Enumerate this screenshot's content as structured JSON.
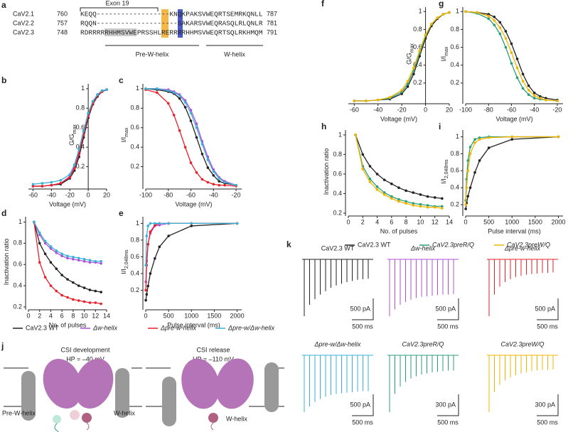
{
  "alignment": {
    "label": "a",
    "exon": "Exon 19",
    "rows": [
      {
        "channel": "CaV2.1",
        "start": 760,
        "sequence": "KEQQ------------------KNQKPAKSVWEQRTSEMRKQNLL",
        "end": 787
      },
      {
        "channel": "CaV2.2",
        "start": 757,
        "sequence": "RQQN--------------------SAKARSVWEQRASQLRLQNLR",
        "end": 781
      },
      {
        "channel": "CaV2.3",
        "start": 748,
        "sequence": "RDRRRRRHHMSVWEPRSSHLRERRRRHHMSVWEQRTSQLRKHMQM",
        "end": 791
      }
    ],
    "regions": [
      "Pre-W-helix",
      "W-helix"
    ]
  },
  "chart_data": [
    {
      "type": "line",
      "label": "b",
      "xlabel": "Voltage (mV)",
      "ylabel": "G/G",
      "ylabel_sub": "max",
      "y_axis_at": 0,
      "x": [
        -60,
        -50,
        -40,
        -30,
        -20,
        -15,
        -10,
        -5,
        0,
        5,
        10,
        15,
        20
      ],
      "xlim": [
        -65,
        20
      ],
      "xticks": [
        -60,
        -40,
        -20,
        0,
        20
      ],
      "ylim": [
        0,
        1.05
      ],
      "yticks": [
        0.2,
        0.4,
        0.6,
        0.8,
        1.0
      ],
      "series": [
        {
          "color": "#222222",
          "values": [
            0,
            0,
            0.01,
            0.02,
            0.08,
            0.16,
            0.3,
            0.5,
            0.7,
            0.84,
            0.92,
            0.97,
            0.99
          ]
        },
        {
          "color": "#b04fd8",
          "values": [
            0,
            0,
            0.01,
            0.03,
            0.1,
            0.2,
            0.36,
            0.56,
            0.74,
            0.87,
            0.94,
            0.98,
            0.99
          ]
        },
        {
          "color": "#e8202a",
          "values": [
            0,
            0,
            0.01,
            0.03,
            0.09,
            0.18,
            0.33,
            0.53,
            0.72,
            0.85,
            0.93,
            0.97,
            0.99
          ]
        },
        {
          "color": "#3ab0d8",
          "values": [
            0.02,
            0.03,
            0.04,
            0.06,
            0.12,
            0.22,
            0.38,
            0.57,
            0.75,
            0.87,
            0.94,
            0.98,
            0.99
          ]
        }
      ]
    },
    {
      "type": "line",
      "label": "c",
      "xlabel": "Voltage (mV)",
      "ylabel": "I/I",
      "ylabel_sub": "max",
      "x": [
        -100,
        -90,
        -80,
        -75,
        -70,
        -65,
        -60,
        -55,
        -50,
        -45,
        -40,
        -35,
        -30,
        -20
      ],
      "xlim": [
        -100,
        -15
      ],
      "xticks": [
        -100,
        -80,
        -60,
        -40,
        -20
      ],
      "ylim": [
        0,
        1.05
      ],
      "yticks": [
        0.2,
        0.4,
        0.6,
        0.8,
        1.0
      ],
      "series": [
        {
          "color": "#222222",
          "values": [
            1,
            0.99,
            0.97,
            0.95,
            0.9,
            0.81,
            0.67,
            0.5,
            0.33,
            0.19,
            0.11,
            0.05,
            0.03,
            0.01
          ]
        },
        {
          "color": "#b04fd8",
          "values": [
            1,
            1,
            0.99,
            0.97,
            0.94,
            0.88,
            0.78,
            0.64,
            0.46,
            0.3,
            0.17,
            0.09,
            0.05,
            0.01
          ]
        },
        {
          "color": "#e8202a",
          "values": [
            0.99,
            0.96,
            0.85,
            0.73,
            0.57,
            0.4,
            0.24,
            0.14,
            0.07,
            0.04,
            0.02,
            0.01,
            0.01,
            0
          ]
        },
        {
          "color": "#3ab0d8",
          "values": [
            1,
            1,
            0.98,
            0.96,
            0.93,
            0.86,
            0.75,
            0.6,
            0.43,
            0.27,
            0.15,
            0.08,
            0.04,
            0.01
          ]
        }
      ]
    },
    {
      "type": "line",
      "label": "d",
      "xlabel": "No. of pulses",
      "ylabel": "Inactivation ratio",
      "x": [
        1,
        2,
        3,
        4,
        5,
        6,
        7,
        8,
        9,
        10,
        11,
        12,
        13
      ],
      "xlim": [
        0,
        14
      ],
      "xticks": [
        0,
        2,
        4,
        6,
        8,
        10,
        12,
        14
      ],
      "ylim": [
        0.2,
        1.05
      ],
      "yticks": [
        0.2,
        0.4,
        0.6,
        0.8,
        1.0
      ],
      "series": [
        {
          "color": "#222222",
          "values": [
            1,
            0.8,
            0.7,
            0.62,
            0.56,
            0.5,
            0.46,
            0.43,
            0.4,
            0.38,
            0.36,
            0.35,
            0.34
          ]
        },
        {
          "color": "#b04fd8",
          "values": [
            1,
            0.88,
            0.8,
            0.75,
            0.71,
            0.68,
            0.66,
            0.65,
            0.64,
            0.63,
            0.62,
            0.62,
            0.61
          ]
        },
        {
          "color": "#e8202a",
          "values": [
            1,
            0.62,
            0.48,
            0.4,
            0.35,
            0.31,
            0.29,
            0.27,
            0.26,
            0.25,
            0.24,
            0.24,
            0.23
          ]
        },
        {
          "color": "#3ab0d8",
          "values": [
            1,
            0.9,
            0.82,
            0.77,
            0.73,
            0.7,
            0.68,
            0.67,
            0.66,
            0.65,
            0.64,
            0.63,
            0.63
          ]
        }
      ]
    },
    {
      "type": "line",
      "label": "e",
      "xlabel": "Pulse interval (ms)",
      "ylabel": "I/I",
      "ylabel_sub": "2,048ms",
      "x": [
        2,
        20,
        50,
        100,
        200,
        300,
        500,
        1000,
        2000
      ],
      "xlim": [
        0,
        2100
      ],
      "xticks": [
        0,
        500,
        1000,
        1500,
        2000
      ],
      "ylim": [
        0,
        1.08
      ],
      "yticks": [
        0.2,
        0.4,
        0.6,
        0.8,
        1.0
      ],
      "series": [
        {
          "color": "#222222",
          "values": [
            0.08,
            0.15,
            0.25,
            0.4,
            0.58,
            0.72,
            0.85,
            0.97,
            1.0
          ]
        },
        {
          "color": "#b04fd8",
          "values": [
            0.3,
            0.55,
            0.75,
            0.88,
            0.97,
            0.98,
            1,
            1,
            1
          ]
        },
        {
          "color": "#e8202a",
          "values": [
            0.2,
            0.5,
            0.75,
            0.9,
            0.98,
            1,
            1,
            1,
            1
          ]
        },
        {
          "color": "#3ab0d8",
          "values": [
            0.5,
            0.85,
            0.97,
            1,
            1,
            1,
            1,
            1,
            1
          ]
        }
      ]
    },
    {
      "type": "line",
      "label": "f",
      "xlabel": "Voltage (mV)",
      "ylabel": "G/G",
      "ylabel_sub": "max",
      "y_axis_at": 0,
      "x": [
        -60,
        -50,
        -40,
        -30,
        -20,
        -15,
        -10,
        -5,
        0,
        5,
        10,
        15,
        20
      ],
      "xlim": [
        -65,
        20
      ],
      "xticks": [
        -60,
        -40,
        -20,
        0,
        20
      ],
      "ylim": [
        0,
        1.05
      ],
      "yticks": [
        0.2,
        0.4,
        0.6,
        0.8,
        1.0
      ],
      "series": [
        {
          "color": "#222222",
          "values": [
            0,
            0,
            0.01,
            0.02,
            0.08,
            0.16,
            0.3,
            0.5,
            0.7,
            0.84,
            0.92,
            0.97,
            0.99
          ]
        },
        {
          "color": "#2a9d78",
          "values": [
            0,
            0,
            0.01,
            0.03,
            0.1,
            0.19,
            0.34,
            0.54,
            0.73,
            0.86,
            0.93,
            0.97,
            0.99
          ]
        },
        {
          "color": "#f0b400",
          "values": [
            0,
            0,
            0.01,
            0.04,
            0.12,
            0.22,
            0.37,
            0.56,
            0.74,
            0.86,
            0.93,
            0.97,
            0.99
          ]
        }
      ]
    },
    {
      "type": "line",
      "label": "g",
      "xlabel": "Voltage (mV)",
      "ylabel": "I/I",
      "ylabel_sub": "max",
      "x": [
        -100,
        -90,
        -80,
        -75,
        -70,
        -65,
        -60,
        -55,
        -50,
        -45,
        -40,
        -35,
        -30,
        -20
      ],
      "xlim": [
        -100,
        -15
      ],
      "xticks": [
        -100,
        -80,
        -60,
        -40,
        -20
      ],
      "ylim": [
        0,
        1.05
      ],
      "yticks": [
        0.2,
        0.4,
        0.6,
        0.8,
        1.0
      ],
      "series": [
        {
          "color": "#222222",
          "values": [
            1,
            0.99,
            0.97,
            0.94,
            0.88,
            0.78,
            0.64,
            0.47,
            0.3,
            0.17,
            0.09,
            0.05,
            0.03,
            0.01
          ]
        },
        {
          "color": "#2a9d78",
          "values": [
            1,
            0.98,
            0.92,
            0.85,
            0.75,
            0.6,
            0.42,
            0.26,
            0.14,
            0.07,
            0.03,
            0.02,
            0.01,
            0
          ]
        },
        {
          "color": "#f0b400",
          "values": [
            1,
            0.99,
            0.95,
            0.9,
            0.82,
            0.7,
            0.54,
            0.37,
            0.22,
            0.12,
            0.06,
            0.03,
            0.01,
            0
          ]
        }
      ]
    },
    {
      "type": "line",
      "label": "h",
      "xlabel": "No. of pulses",
      "ylabel": "Inactivation ratio",
      "x": [
        1,
        2,
        3,
        4,
        5,
        6,
        7,
        8,
        9,
        10,
        11,
        12,
        13
      ],
      "xlim": [
        0,
        14
      ],
      "xticks": [
        0,
        2,
        4,
        6,
        8,
        10,
        12,
        14
      ],
      "ylim": [
        0.2,
        1.05
      ],
      "yticks": [
        0.2,
        0.4,
        0.6,
        0.8,
        1.0
      ],
      "series": [
        {
          "color": "#222222",
          "values": [
            1,
            0.8,
            0.68,
            0.6,
            0.54,
            0.5,
            0.46,
            0.43,
            0.41,
            0.39,
            0.37,
            0.36,
            0.35
          ]
        },
        {
          "color": "#2a9d78",
          "values": [
            1,
            0.68,
            0.55,
            0.47,
            0.41,
            0.37,
            0.34,
            0.32,
            0.3,
            0.29,
            0.28,
            0.27,
            0.27
          ]
        },
        {
          "color": "#f0b400",
          "values": [
            1,
            0.65,
            0.52,
            0.44,
            0.39,
            0.35,
            0.32,
            0.3,
            0.28,
            0.27,
            0.26,
            0.26,
            0.25
          ]
        }
      ]
    },
    {
      "type": "line",
      "label": "i",
      "xlabel": "Pulse interval (ms)",
      "ylabel": "I/I",
      "ylabel_sub": "2,048ms",
      "x": [
        2,
        20,
        50,
        100,
        200,
        300,
        500,
        1000,
        2000
      ],
      "xlim": [
        0,
        2100
      ],
      "xticks": [
        0,
        500,
        1000,
        1500,
        2000
      ],
      "ylim": [
        0.1,
        1.08
      ],
      "yticks": [
        0.2,
        0.4,
        0.6,
        0.8,
        1.0
      ],
      "series": [
        {
          "color": "#222222",
          "values": [
            0.15,
            0.22,
            0.3,
            0.4,
            0.58,
            0.72,
            0.87,
            0.97,
            1
          ]
        },
        {
          "color": "#2a9d78",
          "values": [
            0.25,
            0.5,
            0.72,
            0.88,
            0.97,
            0.99,
            1,
            1,
            1
          ]
        },
        {
          "color": "#f0b400",
          "values": [
            0.2,
            0.4,
            0.6,
            0.8,
            0.93,
            0.97,
            0.99,
            1,
            1
          ]
        }
      ]
    }
  ],
  "legends": [
    {
      "entries": [
        {
          "name": "CaV2.3 WT",
          "color": "#222222"
        },
        {
          "name": "Δw-helix",
          "color": "#b04fd8"
        },
        {
          "name": "Δpre-w-helix",
          "color": "#e8202a"
        },
        {
          "name": "Δpre-w/Δw-helix",
          "color": "#3ab0d8"
        }
      ]
    },
    {
      "entries": [
        {
          "name": "CaV2.3 WT",
          "color": "#222222"
        },
        {
          "name": "CaV2.3preR/Q",
          "color": "#2a9d78"
        },
        {
          "name": "CaV2.3preW/Q",
          "color": "#f0b400"
        }
      ]
    }
  ],
  "diagram": {
    "label": "j",
    "states": [
      {
        "title": "CSI development",
        "hp": "HP = –40 mV"
      },
      {
        "title": "CSI release",
        "hp": "HP = –110 mV"
      }
    ],
    "helix_labels": [
      "Pre-W-helix",
      "W-helix",
      "W-helix"
    ]
  },
  "traces": {
    "label": "k",
    "items": [
      {
        "title": "CaV2.3 WT",
        "current_scale": "500 pA",
        "time_scale": "500 ms"
      },
      {
        "title": "Δw-helix",
        "current_scale": "500 pA",
        "time_scale": "500 ms"
      },
      {
        "title": "Δpre-w-helix",
        "current_scale": "500 pA",
        "time_scale": "500 ms"
      },
      {
        "title": "Δpre-w/Δw-helix",
        "current_scale": "500 pA",
        "time_scale": "500 ms"
      },
      {
        "title": "CaV2.3preR/Q",
        "current_scale": "300 pA",
        "time_scale": "500 ms"
      },
      {
        "title": "CaV2.3preW/Q",
        "current_scale": "300 pA",
        "time_scale": "500 ms"
      }
    ]
  }
}
